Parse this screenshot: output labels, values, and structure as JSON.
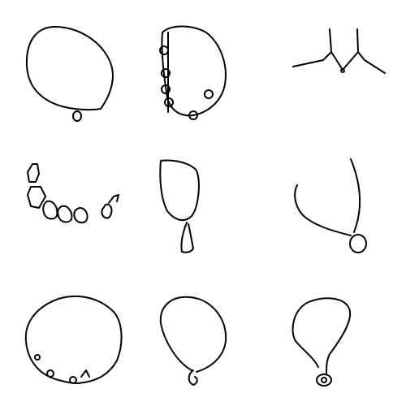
{
  "canvas": {
    "background_color": "#ffffff",
    "stroke_color": "#000000"
  },
  "grid": {
    "rows": 3,
    "columns": 3,
    "cells": [
      {
        "id": 1,
        "icon": "necklace-outline-with-pendant"
      },
      {
        "id": 2,
        "icon": "beaded-necklace-outline"
      },
      {
        "id": 3,
        "icon": "necklace-at-collar"
      },
      {
        "id": 4,
        "icon": "row-of-beads"
      },
      {
        "id": 5,
        "icon": "loop-with-tassel"
      },
      {
        "id": 6,
        "icon": "necklace-with-round-pendant"
      },
      {
        "id": 7,
        "icon": "necklace-outline-with-charms"
      },
      {
        "id": 8,
        "icon": "necklace-outline-with-small-pendant"
      },
      {
        "id": 9,
        "icon": "teardrop-necklace-with-pendant"
      }
    ]
  }
}
